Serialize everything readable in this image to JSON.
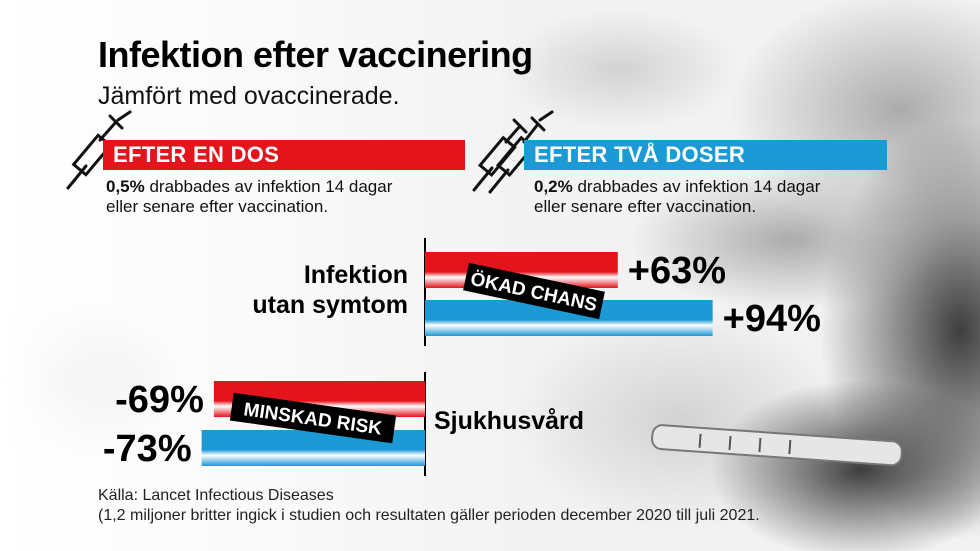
{
  "title": "Infektion efter vaccinering",
  "subtitle": "Jämfört med ovaccinerade.",
  "one_dose": {
    "label": "EFTER EN DOS",
    "percent": "0,5%",
    "text_line1": " drabbades av infektion 14 dagar",
    "text_line2": "eller senare efter vaccination.",
    "icon": "syringe-icon"
  },
  "two_doses": {
    "label": "EFTER TVÅ DOSER",
    "percent": "0,2%",
    "text_line1": " drabbades av infektion 14 dagar",
    "text_line2": "eller senare efter vaccination.",
    "icon": "double-syringe-icon"
  },
  "colors": {
    "one_dose": "#e3141c",
    "two_doses": "#1b9ad6",
    "tag_bg": "#000000",
    "tag_text": "#ffffff"
  },
  "chart_data": [
    {
      "type": "bar",
      "categories": [
        "Infektion utan symtom"
      ],
      "category_label_line1": "Infektion",
      "category_label_line2": "utan symtom",
      "tag": "ÖKAD CHANS",
      "series": [
        {
          "name": "EFTER EN DOS",
          "values": [
            63
          ],
          "label": "+63%"
        },
        {
          "name": "EFTER TVÅ DOSER",
          "values": [
            94
          ],
          "label": "+94%"
        }
      ]
    },
    {
      "type": "bar",
      "categories": [
        "Sjukhusvård"
      ],
      "category_label_line1": "Sjukhusvård",
      "tag": "MINSKAD RISK",
      "series": [
        {
          "name": "EFTER EN DOS",
          "values": [
            -69
          ],
          "label": "-69%"
        },
        {
          "name": "EFTER TVÅ DOSER",
          "values": [
            -73
          ],
          "label": "-73%"
        }
      ]
    }
  ],
  "source_line1": "Källa: Lancet Infectious Diseases",
  "source_line2": "(1,2 miljoner britter ingick i studien och resultaten gäller perioden december 2020 till juli 2021."
}
